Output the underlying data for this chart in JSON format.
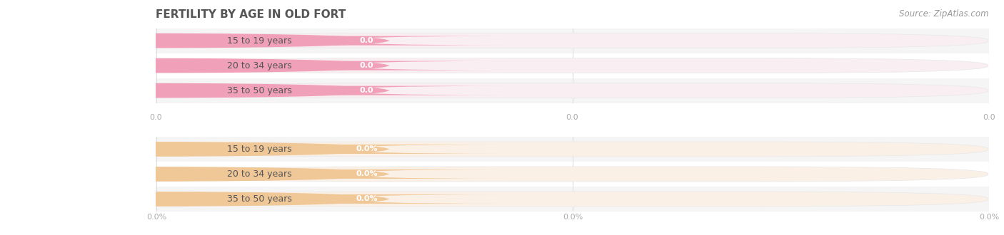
{
  "title": "FERTILITY BY AGE IN OLD FORT",
  "source": "Source: ZipAtlas.com",
  "sections": [
    {
      "categories": [
        "15 to 19 years",
        "20 to 34 years",
        "35 to 50 years"
      ],
      "values": [
        0.0,
        0.0,
        0.0
      ],
      "bar_bg_color": "#f9eef1",
      "circle_color": "#f0a0b8",
      "pill_color": "#f0a0b8",
      "label_text_color": "#ffffff",
      "tick_fmt": "0.0",
      "row_bg": [
        "#f5f5f5",
        "#ffffff",
        "#f5f5f5"
      ]
    },
    {
      "categories": [
        "15 to 19 years",
        "20 to 34 years",
        "35 to 50 years"
      ],
      "values": [
        0.0,
        0.0,
        0.0
      ],
      "bar_bg_color": "#faf0e6",
      "circle_color": "#f0c898",
      "pill_color": "#f0c898",
      "label_text_color": "#ffffff",
      "tick_fmt": "0.0%",
      "row_bg": [
        "#f5f5f5",
        "#ffffff",
        "#f5f5f5"
      ]
    }
  ],
  "bg_color": "#ffffff",
  "title_color": "#555555",
  "title_fontsize": 11,
  "source_color": "#999999",
  "source_fontsize": 8.5,
  "axis_label_color": "#aaaaaa",
  "axis_label_fontsize": 8,
  "category_fontsize": 9,
  "category_color": "#555555",
  "value_fontsize": 8,
  "grid_color": "#dddddd",
  "separator_color": "#e0e0e0"
}
